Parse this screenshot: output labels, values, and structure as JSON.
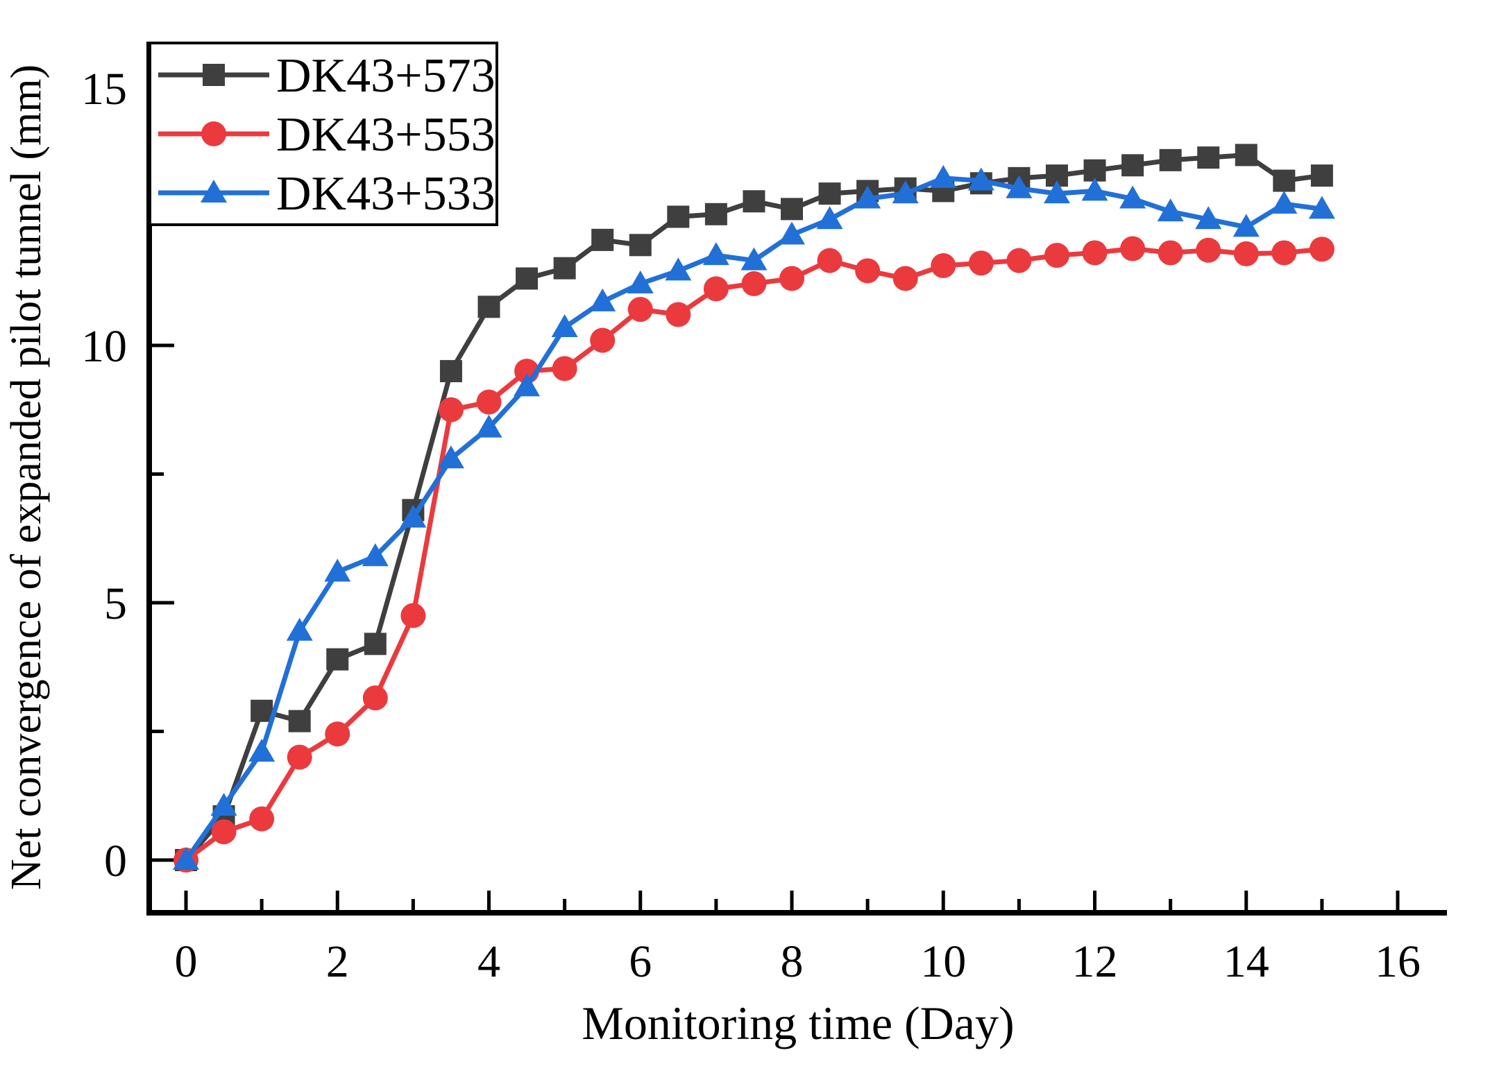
{
  "chart_data": {
    "type": "line",
    "title": "",
    "xlabel": "Monitoring time (Day)",
    "ylabel": "Net convergence of expanded pilot tunnel (mm)",
    "xlim": [
      -0.49,
      16.65
    ],
    "ylim": [
      -1.02,
      15.9
    ],
    "grid": false,
    "legend_position": "top-left",
    "xticks_major": [
      0,
      2,
      4,
      6,
      8,
      10,
      12,
      14,
      16
    ],
    "xticks_minor": [
      1,
      3,
      5,
      7,
      9,
      11,
      13,
      15
    ],
    "yticks_major": [
      0,
      5,
      10,
      15
    ],
    "yticks_minor": [
      2.5,
      7.5,
      12.5
    ],
    "x": [
      0,
      0.5,
      1,
      1.5,
      2,
      2.5,
      3,
      3.5,
      4,
      4.5,
      5,
      5.5,
      6,
      6.5,
      7,
      7.5,
      8,
      8.5,
      9,
      9.5,
      10,
      10.5,
      11,
      11.5,
      12,
      12.5,
      13,
      13.5,
      14,
      14.5,
      15
    ],
    "series": [
      {
        "name": "DK43+573",
        "color": "#3f3f3f",
        "marker": "square",
        "values": [
          0,
          0.85,
          2.9,
          2.7,
          3.9,
          4.2,
          6.8,
          9.5,
          10.75,
          11.3,
          11.5,
          12.05,
          11.95,
          12.5,
          12.55,
          12.8,
          12.65,
          12.95,
          13.0,
          13.05,
          13.0,
          13.15,
          13.25,
          13.3,
          13.4,
          13.5,
          13.6,
          13.65,
          13.7,
          13.2,
          13.3
        ]
      },
      {
        "name": "DK43+553",
        "color": "#ea3a3e",
        "marker": "circle",
        "values": [
          0,
          0.55,
          0.8,
          2.0,
          2.45,
          3.15,
          4.75,
          8.75,
          8.9,
          9.5,
          9.55,
          10.1,
          10.7,
          10.6,
          11.1,
          11.2,
          11.3,
          11.65,
          11.45,
          11.3,
          11.55,
          11.6,
          11.65,
          11.75,
          11.8,
          11.88,
          11.8,
          11.85,
          11.78,
          11.8,
          11.87
        ]
      },
      {
        "name": "DK43+533",
        "color": "#2170d8",
        "marker": "triangle",
        "values": [
          0,
          1.05,
          2.1,
          4.45,
          5.6,
          5.9,
          6.65,
          7.8,
          8.4,
          9.2,
          10.35,
          10.85,
          11.2,
          11.45,
          11.75,
          11.65,
          12.15,
          12.45,
          12.85,
          12.95,
          13.25,
          13.2,
          13.05,
          12.95,
          13.0,
          12.85,
          12.6,
          12.45,
          12.3,
          12.75,
          12.65
        ]
      }
    ],
    "colors": {
      "axis": "#000000",
      "text": "#000000",
      "background": "#ffffff",
      "legend_border": "#000000"
    }
  }
}
